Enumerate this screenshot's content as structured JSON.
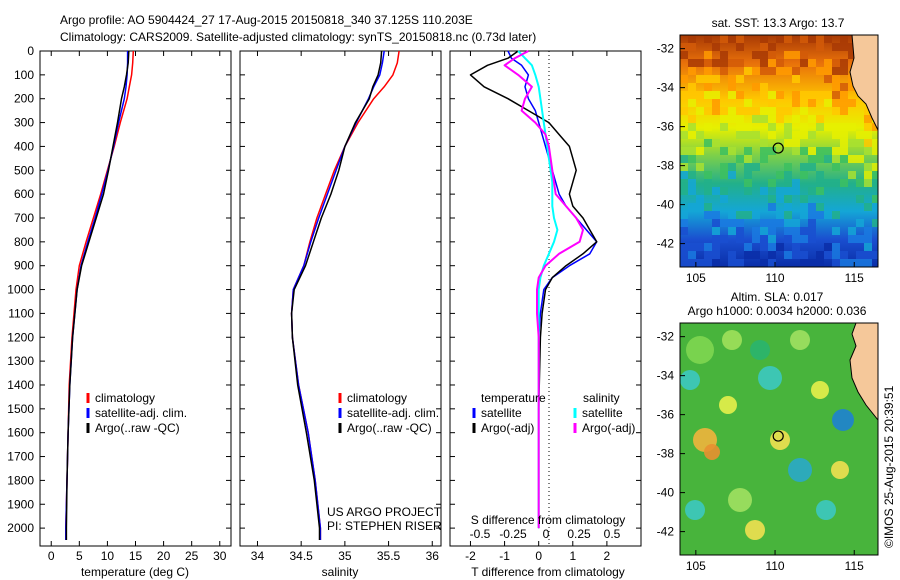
{
  "header": {
    "line1": "Argo profile: AO 5904424_27 17-Aug-2015 20150818_340 37.125S 110.203E",
    "line2": "Climatology: CARS2009. Satellite-adjusted climatology: synTS_20150818.nc (0.73d later)"
  },
  "side_label": "©IMOS 25-Aug-2015 20:39:51",
  "colors": {
    "climatology": "#ff0000",
    "satellite": "#0000ff",
    "argo": "#000000",
    "sat_salinity": "#00ffff",
    "argo_salinity": "#ff00ff"
  },
  "chart_data": [
    {
      "type": "line",
      "id": "temperature",
      "xlabel": "temperature (deg C)",
      "xlim": [
        -2,
        32
      ],
      "ylim": [
        2075,
        0
      ],
      "xticks": [
        "0",
        "5",
        "10",
        "15",
        "20",
        "25",
        "30"
      ],
      "yticks": [
        "0",
        "100",
        "200",
        "300",
        "400",
        "500",
        "600",
        "700",
        "800",
        "900",
        "1000",
        "1100",
        "1200",
        "1300",
        "1400",
        "1500",
        "1600",
        "1700",
        "1800",
        "1900",
        "2000"
      ],
      "legend": [
        "climatology",
        "satellite-adj. clim.",
        "Argo(..raw -QC)"
      ],
      "depth": [
        0,
        50,
        100,
        150,
        200,
        300,
        400,
        500,
        600,
        700,
        800,
        900,
        1000,
        1200,
        1400,
        1600,
        1800,
        2000,
        2050
      ],
      "series": [
        {
          "name": "climatology",
          "values": [
            14.6,
            14.5,
            14.3,
            13.9,
            13.5,
            12.3,
            11.2,
            10.0,
            8.8,
            7.5,
            6.2,
            5.0,
            4.4,
            3.7,
            3.2,
            3.0,
            2.8,
            2.6,
            2.6
          ]
        },
        {
          "name": "satellite-adj. clim.",
          "values": [
            13.6,
            13.6,
            13.5,
            13.3,
            13.0,
            12.0,
            11.1,
            10.1,
            9.0,
            7.8,
            6.5,
            5.3,
            4.6,
            3.8,
            3.3,
            3.0,
            2.8,
            2.6,
            2.6
          ]
        },
        {
          "name": "Argo(..raw -QC)",
          "values": [
            13.8,
            13.7,
            13.4,
            13.0,
            12.5,
            11.8,
            11.0,
            10.2,
            9.3,
            8.0,
            6.7,
            5.4,
            4.6,
            3.8,
            3.3,
            3.0,
            2.8,
            2.7,
            2.7
          ]
        }
      ]
    },
    {
      "type": "line",
      "id": "salinity",
      "xlabel": "salinity",
      "xlim": [
        33.8,
        36.1
      ],
      "ylim": [
        2075,
        0
      ],
      "xticks": [
        "34",
        "34.5",
        "35",
        "35.5",
        "36"
      ],
      "legend": [
        "climatology",
        "satellite-adj. clim.",
        "Argo(..raw -QC)"
      ],
      "annotation_lines": [
        "US ARGO PROJECT",
        "PI: STEPHEN RISER"
      ],
      "depth": [
        0,
        50,
        100,
        150,
        200,
        300,
        400,
        500,
        600,
        700,
        800,
        900,
        1000,
        1100,
        1200,
        1400,
        1600,
        1800,
        2000,
        2050
      ],
      "series": [
        {
          "name": "climatology",
          "values": [
            35.62,
            35.6,
            35.55,
            35.45,
            35.33,
            35.15,
            35.0,
            34.88,
            34.78,
            34.68,
            34.6,
            34.53,
            34.41,
            34.39,
            34.4,
            34.47,
            34.58,
            34.66,
            34.72,
            34.72
          ]
        },
        {
          "name": "satellite-adj. clim.",
          "values": [
            35.45,
            35.43,
            35.4,
            35.33,
            35.27,
            35.13,
            35.0,
            34.9,
            34.8,
            34.7,
            34.61,
            34.53,
            34.41,
            34.39,
            34.4,
            34.47,
            34.58,
            34.66,
            34.72,
            34.72
          ]
        },
        {
          "name": "Argo(..raw -QC)",
          "values": [
            35.42,
            35.41,
            35.38,
            35.32,
            35.28,
            35.12,
            35.0,
            34.93,
            34.84,
            34.73,
            34.64,
            34.55,
            34.42,
            34.39,
            34.4,
            34.46,
            34.56,
            34.65,
            34.71,
            34.71
          ]
        }
      ]
    },
    {
      "type": "line",
      "id": "difference",
      "xlabel": "T difference from climatology",
      "xlabel_top": "S difference from climatology",
      "xlim": [
        -2.6,
        3.0
      ],
      "ylim": [
        2075,
        0
      ],
      "xticks": [
        "-2",
        "-1",
        "0",
        "1",
        "2"
      ],
      "xticks_top": [
        "-0.5",
        "-0.25",
        "0",
        "0.25",
        "0.5"
      ],
      "legend_titles": [
        "temperature",
        "salinity"
      ],
      "legend": [
        "satellite",
        "Argo(-adj)",
        "satellite",
        "Argo(-adj)"
      ],
      "depth": [
        0,
        30,
        60,
        100,
        150,
        200,
        250,
        300,
        350,
        400,
        450,
        500,
        550,
        600,
        650,
        700,
        750,
        800,
        850,
        900,
        950,
        1000,
        1100,
        1200,
        1500,
        2000
      ],
      "series": [
        {
          "name": "satellite",
          "values": [
            -0.9,
            -0.8,
            -0.5,
            -0.3,
            -0.4,
            -0.3,
            -0.1,
            0.0,
            0.1,
            0.2,
            0.3,
            0.4,
            0.5,
            0.6,
            0.8,
            1.1,
            1.4,
            1.7,
            1.5,
            0.9,
            0.4,
            0.15,
            0.05,
            0.0,
            0.0,
            0.0
          ]
        },
        {
          "name": "Argo(-adj)",
          "values": [
            -0.6,
            -0.9,
            -1.5,
            -2.0,
            -1.6,
            -0.9,
            -0.3,
            0.3,
            0.6,
            0.9,
            1.0,
            1.1,
            1.0,
            0.9,
            1.0,
            1.3,
            1.5,
            1.7,
            1.3,
            0.8,
            0.4,
            0.2,
            0.1,
            0.05,
            0.0,
            0.0
          ]
        },
        {
          "name": "satellite",
          "values": [
            -0.6,
            -0.4,
            -0.2,
            -0.1,
            0.0,
            0.05,
            0.1,
            0.15,
            0.2,
            0.25,
            0.3,
            0.35,
            0.4,
            0.4,
            0.4,
            0.45,
            0.55,
            0.45,
            0.3,
            0.15,
            0.05,
            0.0,
            0.0,
            0.0,
            0.0,
            0.0
          ]
        },
        {
          "name": "Argo(-adj)",
          "values": [
            -0.3,
            -0.7,
            -1.0,
            -0.6,
            -0.2,
            -0.4,
            -0.5,
            -0.1,
            0.2,
            0.3,
            0.35,
            0.4,
            0.45,
            0.5,
            0.8,
            1.1,
            1.3,
            1.2,
            0.6,
            0.2,
            0.0,
            -0.05,
            -0.05,
            0.0,
            0.0,
            0.0
          ]
        }
      ]
    },
    {
      "type": "heatmap",
      "id": "sst_map",
      "title": "sat. SST: 13.3 Argo: 13.7",
      "xlim": [
        104,
        116.5
      ],
      "ylim": [
        -43.2,
        -31.3
      ],
      "xticks": [
        "105",
        "110",
        "115"
      ],
      "yticks": [
        "-32",
        "-34",
        "-36",
        "-38",
        "-40",
        "-42"
      ],
      "marker": {
        "lon": 110.2,
        "lat": -37.1
      }
    },
    {
      "type": "heatmap",
      "id": "sla_map",
      "title_lines": [
        "Altim. SLA: 0.017",
        "Argo h1000: 0.0034 h2000: 0.036"
      ],
      "xlim": [
        104,
        116.5
      ],
      "ylim": [
        -43.2,
        -31.3
      ],
      "xticks": [
        "105",
        "110",
        "115"
      ],
      "yticks": [
        "-32",
        "-34",
        "-36",
        "-38",
        "-40",
        "-42"
      ],
      "marker": {
        "lon": 110.2,
        "lat": -37.1
      }
    }
  ]
}
